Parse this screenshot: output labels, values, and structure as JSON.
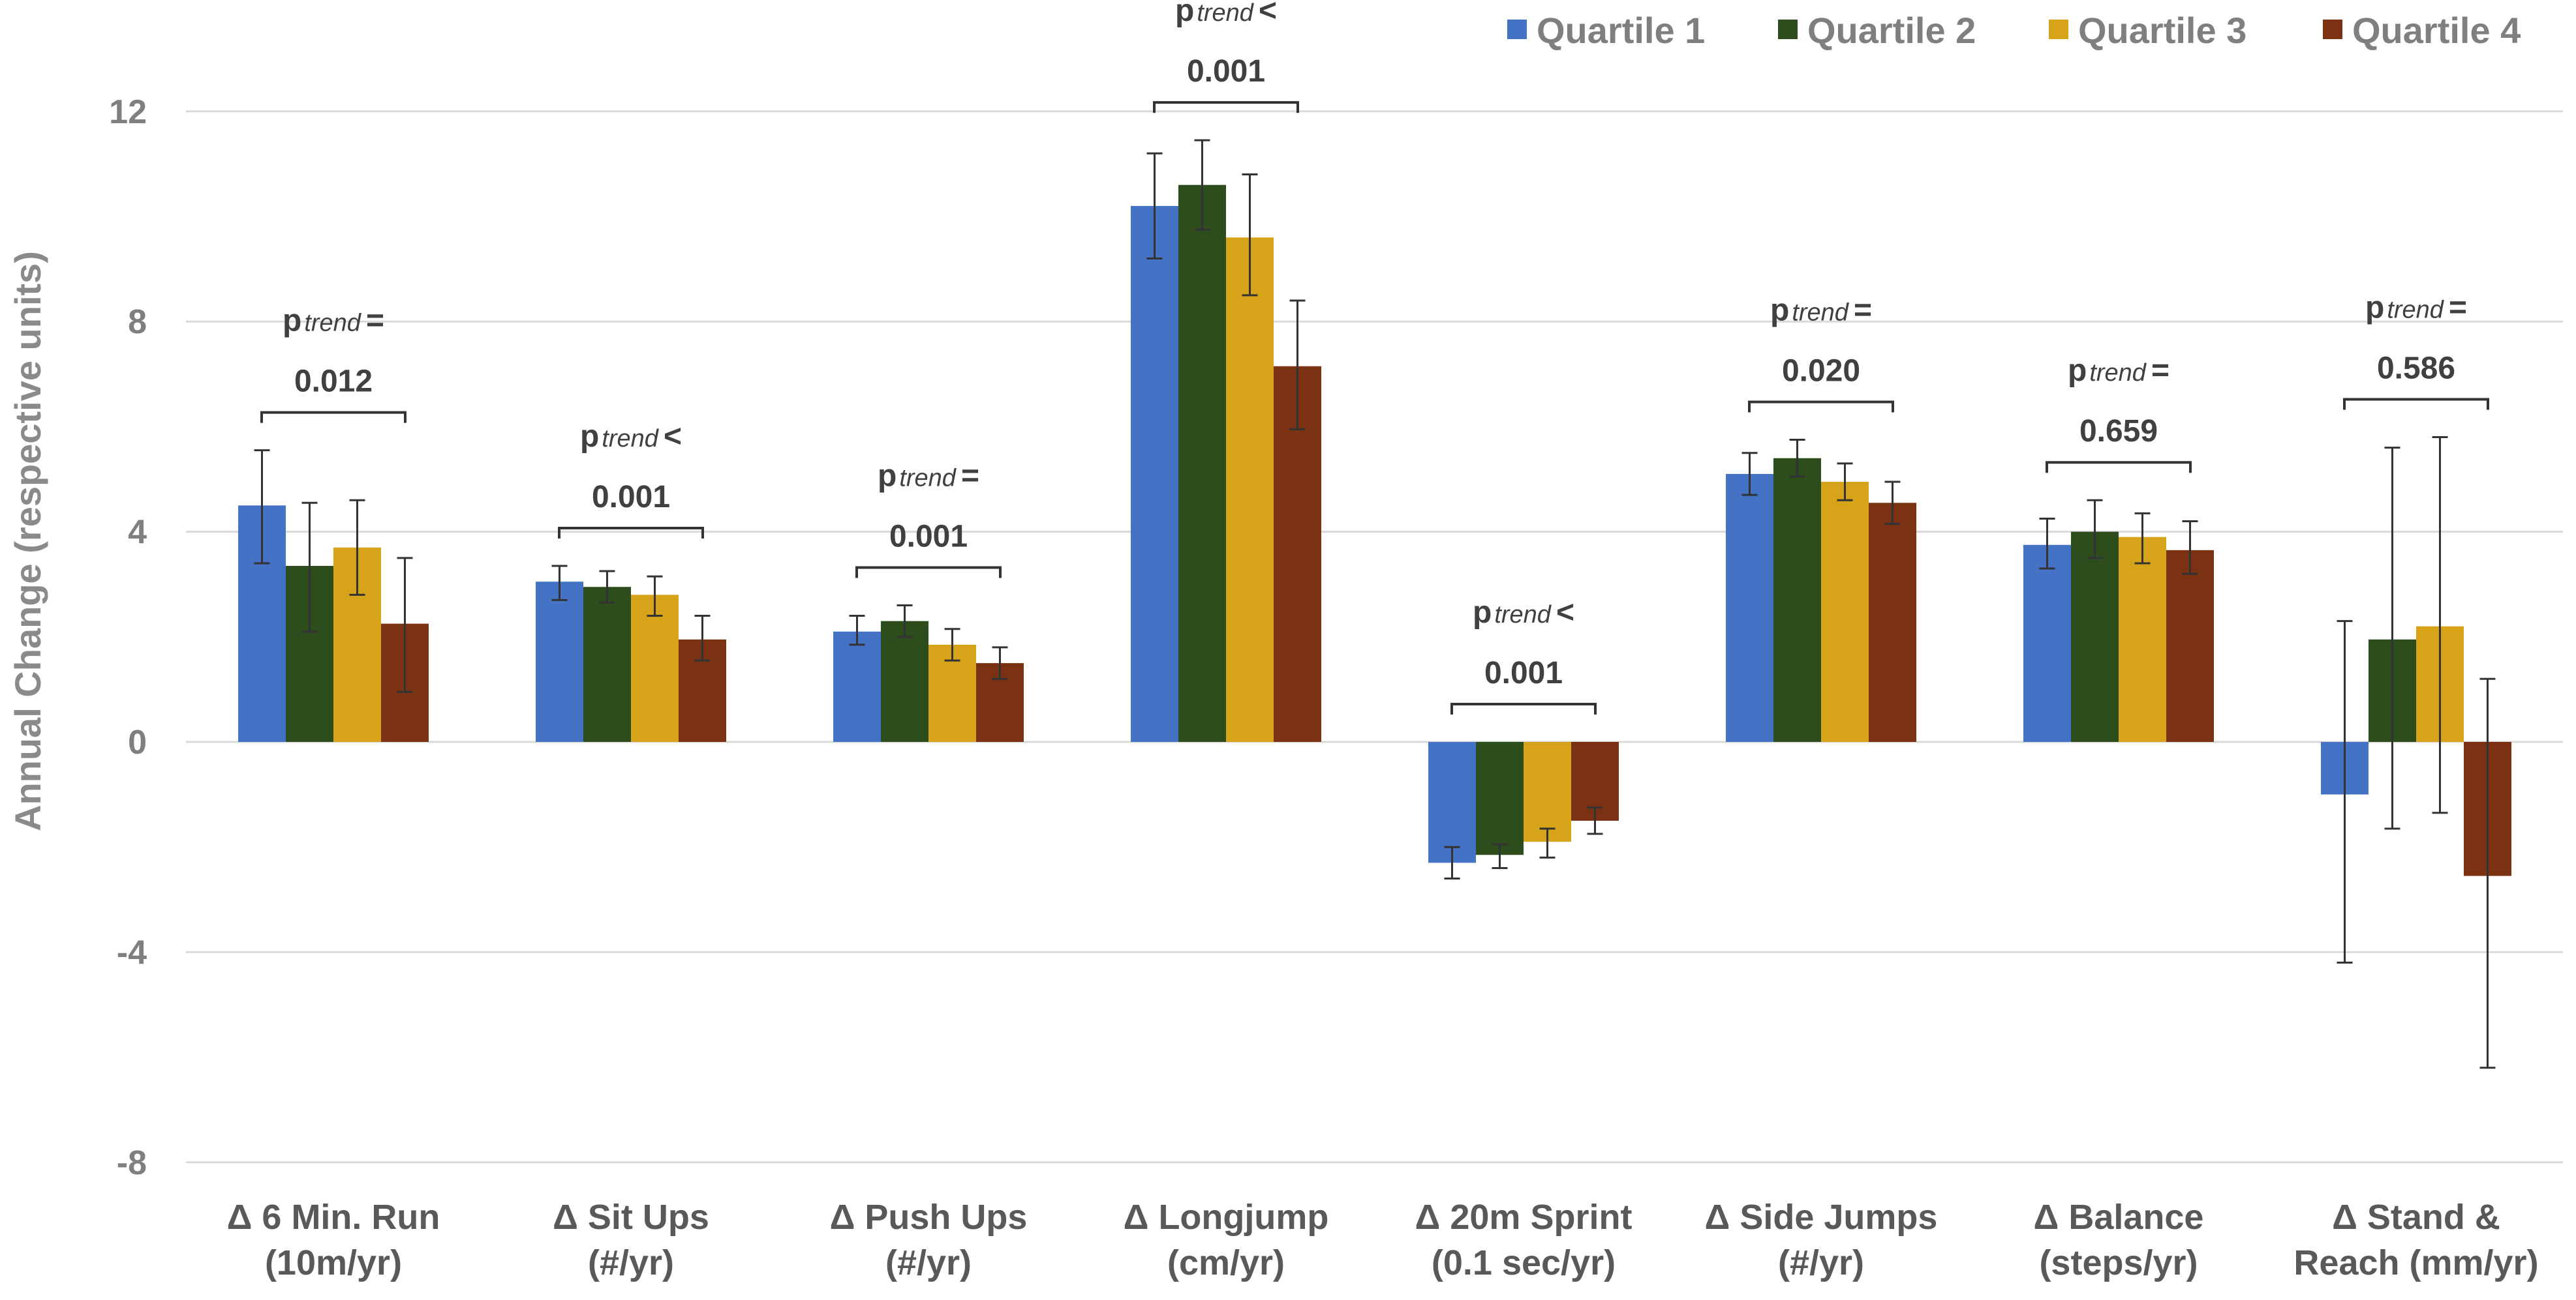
{
  "chart_data": {
    "type": "bar",
    "title": "",
    "xlabel": "",
    "ylabel": "Annual Change (respective units)",
    "ylim": [
      -8,
      12
    ],
    "yticks": [
      -8,
      -4,
      0,
      4,
      8,
      12
    ],
    "grid": true,
    "legend_position": "top-right",
    "categories": [
      [
        "Δ 6 Min. Run",
        "(10m/yr)"
      ],
      [
        "Δ Sit Ups",
        "(#/yr)"
      ],
      [
        "Δ Push Ups",
        "(#/yr)"
      ],
      [
        "Δ Longjump",
        "(cm/yr)"
      ],
      [
        "Δ 20m Sprint",
        "(0.1 sec/yr)"
      ],
      [
        "Δ Side Jumps",
        "(#/yr)"
      ],
      [
        "Δ Balance",
        "(steps/yr)"
      ],
      [
        "Δ Stand &",
        "Reach (mm/yr)"
      ]
    ],
    "series": [
      {
        "name": "Quartile 1",
        "color": "#4472C4",
        "values": [
          4.5,
          3.05,
          2.1,
          10.2,
          -2.3,
          5.1,
          3.75,
          -1.0
        ],
        "err_high": [
          5.55,
          3.35,
          2.4,
          11.2,
          -2.0,
          5.5,
          4.25,
          2.3
        ],
        "err_low": [
          3.4,
          2.7,
          1.85,
          9.2,
          -2.6,
          4.7,
          3.3,
          -4.2
        ]
      },
      {
        "name": "Quartile 2",
        "color": "#2E4D1C",
        "values": [
          3.35,
          2.95,
          2.3,
          10.6,
          -2.15,
          5.4,
          4.0,
          1.95
        ],
        "err_high": [
          4.55,
          3.25,
          2.6,
          11.45,
          -1.95,
          5.75,
          4.6,
          5.6
        ],
        "err_low": [
          2.1,
          2.65,
          2.0,
          9.75,
          -2.4,
          5.05,
          3.5,
          -1.65
        ]
      },
      {
        "name": "Quartile 3",
        "color": "#D6A319",
        "values": [
          3.7,
          2.8,
          1.85,
          9.6,
          -1.9,
          4.95,
          3.9,
          2.2
        ],
        "err_high": [
          4.6,
          3.15,
          2.15,
          10.8,
          -1.65,
          5.3,
          4.35,
          5.8
        ],
        "err_low": [
          2.8,
          2.4,
          1.55,
          8.5,
          -2.2,
          4.6,
          3.4,
          -1.35
        ]
      },
      {
        "name": "Quartile 4",
        "color": "#7A3212",
        "values": [
          2.25,
          1.95,
          1.5,
          7.15,
          -1.5,
          4.55,
          3.65,
          -2.55
        ],
        "err_high": [
          3.5,
          2.4,
          1.8,
          8.4,
          -1.25,
          4.95,
          4.2,
          1.2
        ],
        "err_low": [
          0.95,
          1.55,
          1.2,
          5.95,
          -1.75,
          4.15,
          3.2,
          -6.2
        ]
      }
    ],
    "annotations": [
      {
        "p": "p",
        "sub": "trend",
        "relation": "=",
        "value": "0.012"
      },
      {
        "p": "p",
        "sub": "trend",
        "relation": "<",
        "value": "0.001"
      },
      {
        "p": "p",
        "sub": "trend",
        "relation": "=",
        "value": "0.001"
      },
      {
        "p": "p",
        "sub": "trend",
        "relation": "<",
        "value": "0.001"
      },
      {
        "p": "p",
        "sub": "trend",
        "relation": "<",
        "value": "0.001"
      },
      {
        "p": "p",
        "sub": "trend",
        "relation": "=",
        "value": "0.020"
      },
      {
        "p": "p",
        "sub": "trend",
        "relation": "=",
        "value": "0.659"
      },
      {
        "p": "p",
        "sub": "trend",
        "relation": "=",
        "value": "0.586"
      }
    ]
  }
}
